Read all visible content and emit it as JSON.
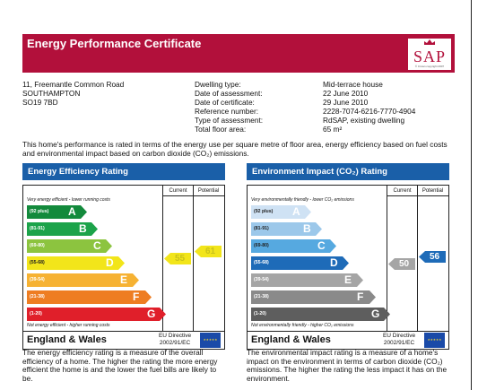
{
  "header": {
    "title": "Energy Performance Certificate",
    "logo": "SAP",
    "logo_small": "© Crown copyright 2007",
    "color": "#b2103b"
  },
  "address": [
    "11, Freemantle Common Road",
    "SOUTHAMPTON",
    "SO19 7BD"
  ],
  "details": {
    "keys": [
      "Dwelling type:",
      "Date of assessment:",
      "Date of certificate:",
      "Reference number:",
      "Type of assessment:",
      "Total floor area:"
    ],
    "values": [
      "Mid-terrace house",
      "22 June 2010",
      "29 June 2010",
      "2228-7074-6216-7770-4904",
      "RdSAP, existing dwelling",
      "65 m²"
    ]
  },
  "intro": "This home's performance is rated in terms of the energy use per square metre of floor area, energy efficiency based on fuel costs and environmental impact based on carbon dioxide (CO₂) emissions.",
  "energy": {
    "title": "Energy Efficiency Rating",
    "col_current": "Current",
    "col_potential": "Potential",
    "top_label": "Very energy efficient - lower running costs",
    "bottom_label": "Not energy efficient - higher running costs",
    "bands": [
      {
        "range": "(92 plus)",
        "letter": "A",
        "color": "#138a3c"
      },
      {
        "range": "(81-91)",
        "letter": "B",
        "color": "#1ca34a"
      },
      {
        "range": "(69-80)",
        "letter": "C",
        "color": "#8cc43f"
      },
      {
        "range": "(55-68)",
        "letter": "D",
        "color": "#f2e51a"
      },
      {
        "range": "(39-54)",
        "letter": "E",
        "color": "#f6b233"
      },
      {
        "range": "(21-38)",
        "letter": "F",
        "color": "#ee7d22"
      },
      {
        "range": "(1-20)",
        "letter": "G",
        "color": "#e01f2a"
      }
    ],
    "current": 55,
    "current_color": "#f2e51a",
    "potential": 61,
    "potential_color": "#f2e51a",
    "footer_name": "England & Wales",
    "directive_1": "EU Directive",
    "directive_2": "2002/91/EC",
    "description": "The energy efficiency rating is a measure of the overall efficiency of a home. The higher the rating the more energy efficient the home is and the lower the fuel bills are likely to be."
  },
  "environment": {
    "title": "Environment Impact (CO₂) Rating",
    "col_current": "Current",
    "col_potential": "Potential",
    "top_label": "Very environmentally friendly - lower CO₂ emissions",
    "bottom_label": "Not environmentally friendly - higher CO₂ emissions",
    "bands": [
      {
        "range": "(92 plus)",
        "letter": "A",
        "color": "#cfe2f4"
      },
      {
        "range": "(81-91)",
        "letter": "B",
        "color": "#9cc8ea"
      },
      {
        "range": "(69-80)",
        "letter": "C",
        "color": "#56a9e0"
      },
      {
        "range": "(55-68)",
        "letter": "D",
        "color": "#1e6bb8"
      },
      {
        "range": "(39-54)",
        "letter": "E",
        "color": "#a5a5a5"
      },
      {
        "range": "(21-38)",
        "letter": "F",
        "color": "#8a8a8a"
      },
      {
        "range": "(1-20)",
        "letter": "G",
        "color": "#5e5e5e"
      }
    ],
    "current": 50,
    "current_color": "#a5a5a5",
    "potential": 56,
    "potential_color": "#1e6bb8",
    "footer_name": "England & Wales",
    "directive_1": "EU Directive",
    "directive_2": "2002/91/EC",
    "description": "The environmental impact rating is a measure of a home's impact on the environment in terms of carbon dioxide (CO₂) emissions. The higher the rating the less impact it has on the environment."
  }
}
